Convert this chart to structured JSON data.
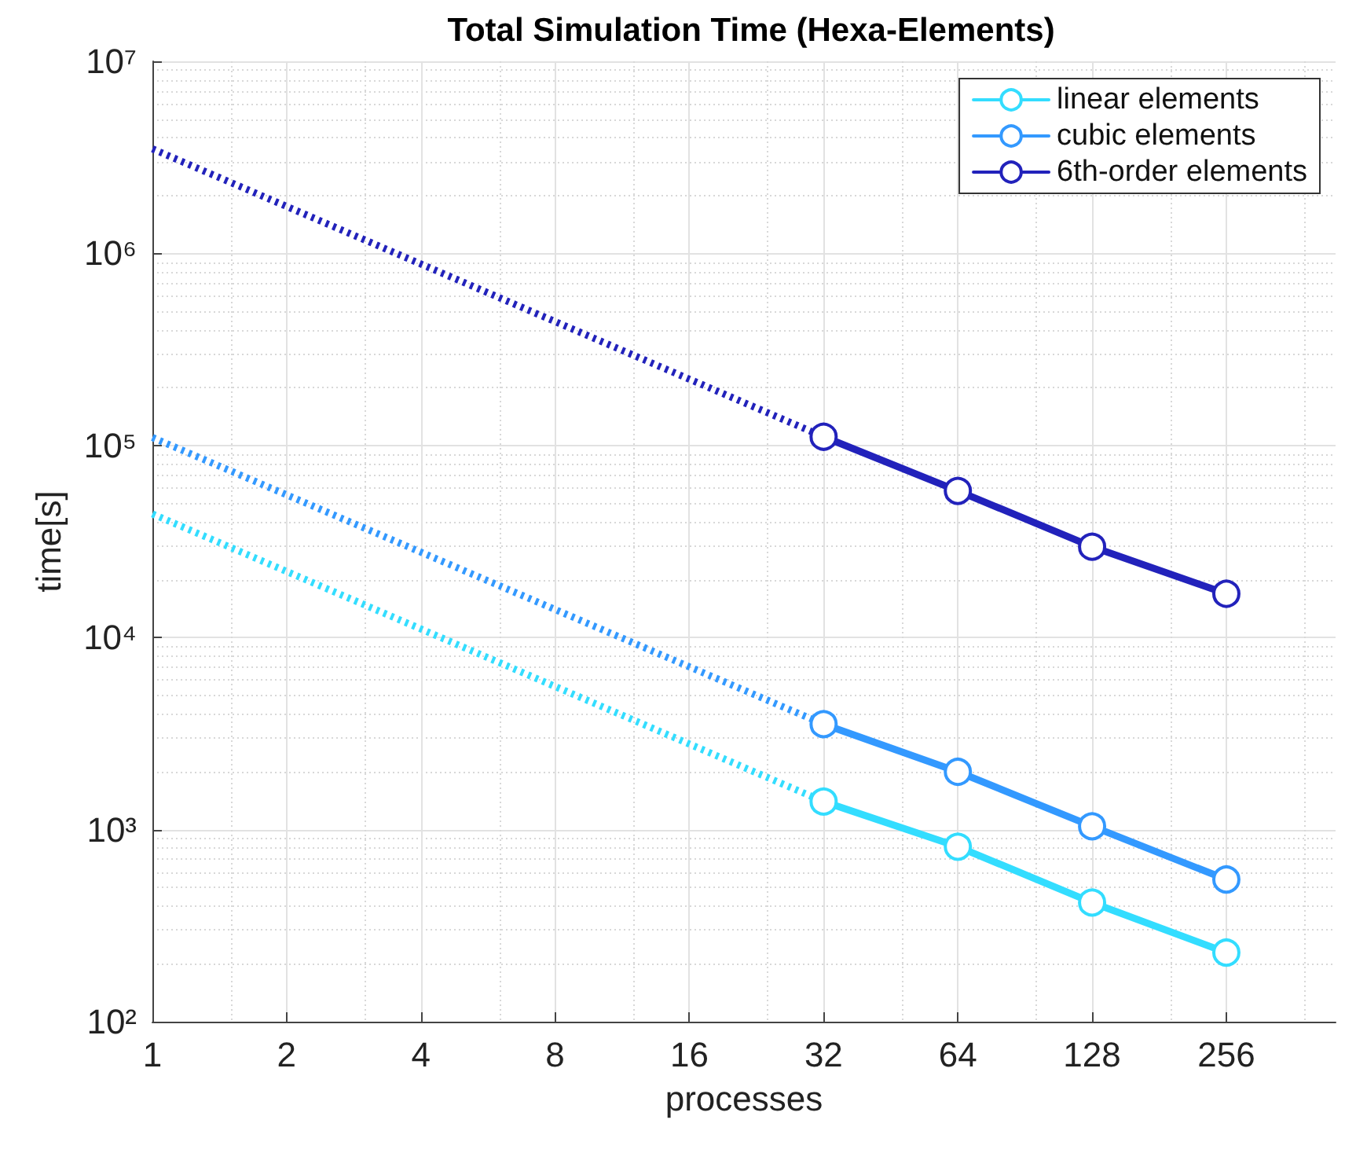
{
  "chart_data": {
    "type": "line",
    "title": "Total Simulation Time (Hexa-Elements)",
    "xlabel": "processes",
    "ylabel": "time[s]",
    "log": "xy",
    "grid": true,
    "legend": "top right",
    "marker": "circle",
    "xlim": [
      1,
      450
    ],
    "xticks": [
      1,
      2,
      4,
      8,
      16,
      32,
      64,
      128,
      256
    ],
    "ylim": [
      100,
      10000000
    ],
    "yticks": [
      {
        "value": 100,
        "label": "10²"
      },
      {
        "value": 1000,
        "label": "10³"
      },
      {
        "value": 10000,
        "label": "10⁴"
      },
      {
        "value": 100000,
        "label": "10⁵"
      },
      {
        "value": 1000000,
        "label": "10⁶"
      },
      {
        "value": 10000000,
        "label": "10⁷"
      }
    ],
    "series": [
      {
        "name": "linear elements",
        "color": "#33ddff",
        "x": [
          32,
          64,
          128,
          256
        ],
        "values": [
          1400,
          815,
          417,
          229
        ]
      },
      {
        "name": "cubic elements",
        "color": "#3399ff",
        "x": [
          32,
          64,
          128,
          256
        ],
        "values": [
          3540,
          2000,
          1040,
          550
        ]
      },
      {
        "name": "6th-order elements",
        "color": "#2222bb",
        "x": [
          32,
          64,
          128,
          256
        ],
        "values": [
          111000,
          58000,
          29700,
          16900
        ]
      },
      {
        "color": "#33ddff",
        "x": [
          1,
          32
        ],
        "values": [
          44000,
          1400
        ],
        "line_style": "dotted",
        "marker": "none"
      },
      {
        "color": "#3399ff",
        "x": [
          1,
          32
        ],
        "values": [
          110000,
          3540
        ],
        "line_style": "dotted",
        "marker": "none"
      },
      {
        "color": "#2222bb",
        "x": [
          1,
          32
        ],
        "values": [
          3500000,
          111000
        ],
        "line_style": "dotted",
        "marker": "none"
      }
    ]
  }
}
